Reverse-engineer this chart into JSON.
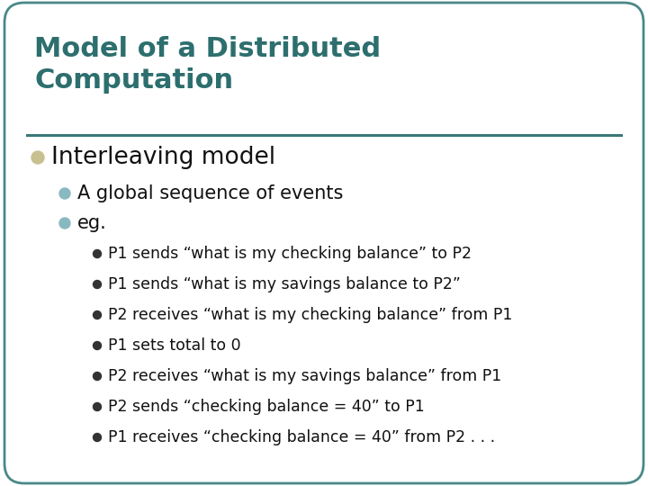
{
  "title_line1": "Model of a Distributed",
  "title_line2": "Computation",
  "title_color": "#2d6e6e",
  "title_fontsize": 22,
  "background_color": "#ffffff",
  "border_color": "#4a8888",
  "divider_color": "#3a7878",
  "bullet_l1_text": "Interleaving model",
  "bullet_l1_color": "#c8c090",
  "bullet_l1_char": "l",
  "bullet_l2_color": "#88b8c0",
  "bullet_l3_color": "#333333",
  "body_text_color": "#111111",
  "l1_fontsize": 19,
  "l2_fontsize": 15,
  "l3_fontsize": 12.5,
  "l2_items": [
    "A global sequence of events",
    "eg."
  ],
  "l3_items": [
    "P1 sends “what is my checking balance” to P2",
    "P1 sends “what is my savings balance to P2”",
    "P2 receives “what is my checking balance” from P1",
    "P1 sets total to 0",
    "P2 receives “what is my savings balance” from P1",
    "P2 sends “checking balance = 40” to P1",
    "P1 receives “checking balance = 40” from P2 . . ."
  ]
}
